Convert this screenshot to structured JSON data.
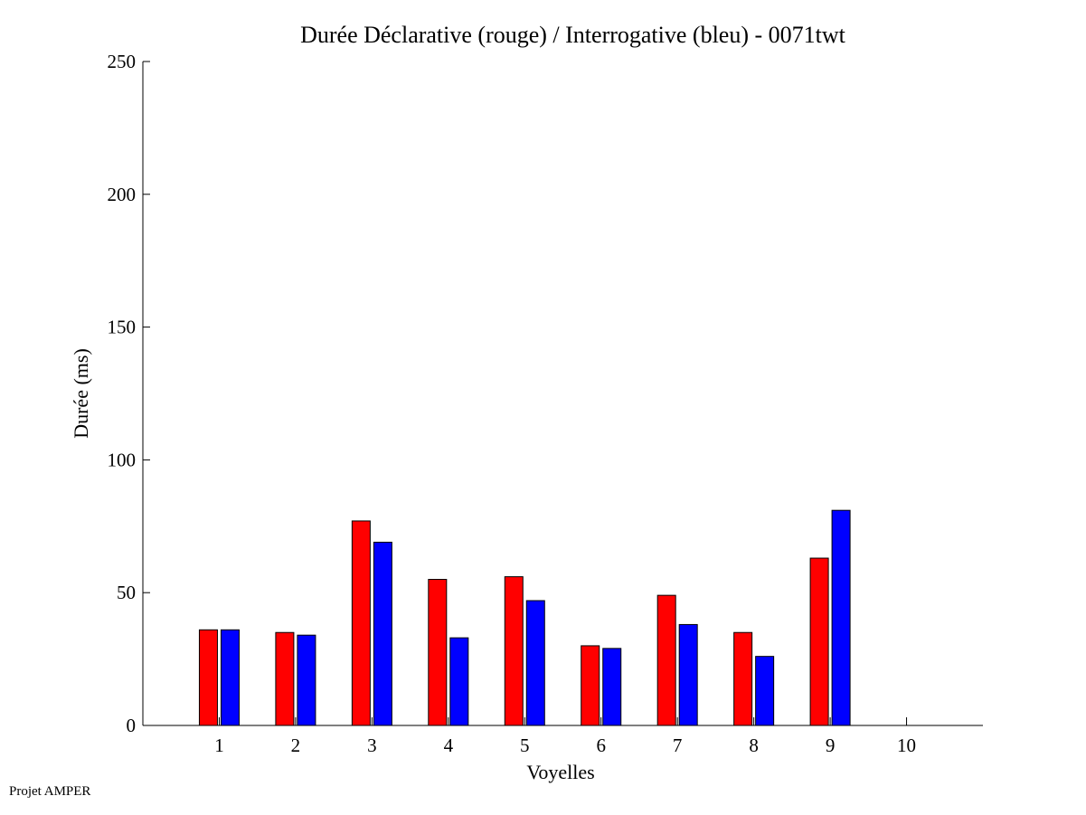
{
  "chart_data": {
    "type": "bar",
    "title": "Durée Déclarative (rouge) / Interrogative (bleu) - 0071twt",
    "xlabel": "Voyelles",
    "ylabel": "Durée (ms)",
    "ylim": [
      0,
      250
    ],
    "xlim": [
      0,
      11
    ],
    "yticks": [
      0,
      50,
      100,
      150,
      200,
      250
    ],
    "categories": [
      "1",
      "2",
      "3",
      "4",
      "5",
      "6",
      "7",
      "8",
      "9",
      "10"
    ],
    "series": [
      {
        "color": "#ff0000",
        "values": [
          36,
          35,
          77,
          55,
          56,
          30,
          49,
          35,
          63,
          null
        ]
      },
      {
        "color": "#0000ff",
        "values": [
          36,
          34,
          69,
          33,
          47,
          29,
          38,
          26,
          81,
          null
        ]
      }
    ],
    "grid": false,
    "legend": "none"
  },
  "footer": {
    "note": "Projet AMPER"
  }
}
